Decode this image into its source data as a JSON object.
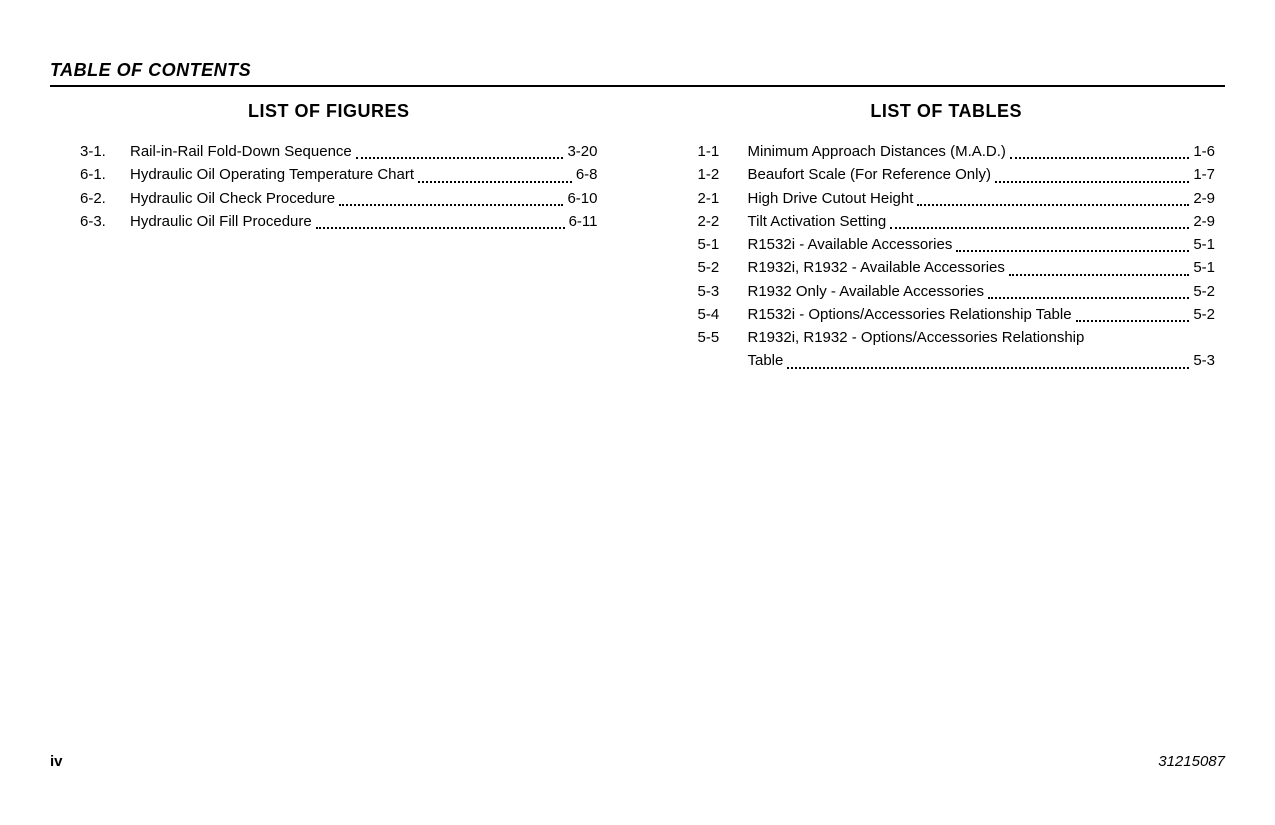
{
  "header": {
    "title": "TABLE OF CONTENTS"
  },
  "figures": {
    "heading": "LIST OF FIGURES",
    "items": [
      {
        "num": "3-1.",
        "title": "Rail-in-Rail Fold-Down Sequence",
        "page": "3-20"
      },
      {
        "num": "6-1.",
        "title": "Hydraulic Oil Operating Temperature Chart",
        "page": "6-8"
      },
      {
        "num": "6-2.",
        "title": "Hydraulic Oil Check Procedure",
        "page": "6-10"
      },
      {
        "num": "6-3.",
        "title": "Hydraulic Oil Fill Procedure",
        "page": "6-11"
      }
    ]
  },
  "tables": {
    "heading": "LIST OF TABLES",
    "items": [
      {
        "num": "1-1",
        "title": "Minimum Approach Distances (M.A.D.)",
        "page": "1-6"
      },
      {
        "num": "1-2",
        "title": "Beaufort Scale (For Reference Only)",
        "page": "1-7"
      },
      {
        "num": "2-1",
        "title": "High Drive Cutout Height",
        "page": "2-9"
      },
      {
        "num": "2-2",
        "title": "Tilt Activation Setting",
        "page": "2-9"
      },
      {
        "num": "5-1",
        "title": "R1532i - Available Accessories",
        "page": "5-1"
      },
      {
        "num": "5-2",
        "title": "R1932i, R1932 - Available Accessories",
        "page": "5-1"
      },
      {
        "num": "5-3",
        "title": "R1932 Only - Available Accessories",
        "page": "5-2"
      },
      {
        "num": "5-4",
        "title": "R1532i - Options/Accessories Relationship Table",
        "page": "5-2"
      }
    ],
    "wrapped_item": {
      "num": "5-5",
      "title_line1": "R1932i, R1932 - Options/Accessories Relationship",
      "title_line2": "Table",
      "page": "5-3"
    }
  },
  "footer": {
    "page_number": "iv",
    "doc_number": "31215087"
  }
}
